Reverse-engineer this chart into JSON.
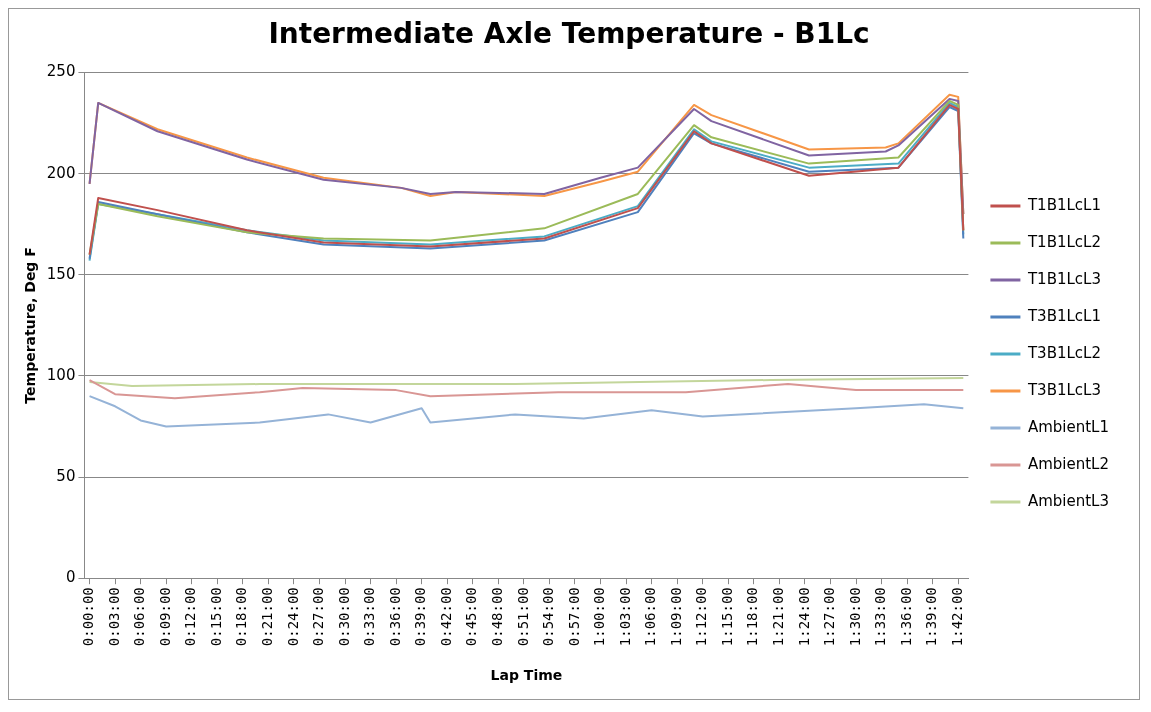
{
  "chart_data": {
    "type": "line",
    "title": "Intermediate Axle Temperature - B1Lc",
    "xlabel": "Lap Time",
    "ylabel": "Temperature, Deg F",
    "xlim": [
      -0.01,
      1.72
    ],
    "ylim": [
      0,
      250
    ],
    "yticks": [
      0,
      50,
      100,
      150,
      200,
      250
    ],
    "xticks": [
      {
        "value": 0,
        "label": "0:00:00"
      },
      {
        "value": 0.05,
        "label": "0:03:00"
      },
      {
        "value": 0.1,
        "label": "0:06:00"
      },
      {
        "value": 0.15,
        "label": "0:09:00"
      },
      {
        "value": 0.2,
        "label": "0:12:00"
      },
      {
        "value": 0.25,
        "label": "0:15:00"
      },
      {
        "value": 0.3,
        "label": "0:18:00"
      },
      {
        "value": 0.35,
        "label": "0:21:00"
      },
      {
        "value": 0.4,
        "label": "0:24:00"
      },
      {
        "value": 0.45,
        "label": "0:27:00"
      },
      {
        "value": 0.5,
        "label": "0:30:00"
      },
      {
        "value": 0.55,
        "label": "0:33:00"
      },
      {
        "value": 0.6,
        "label": "0:36:00"
      },
      {
        "value": 0.65,
        "label": "0:39:00"
      },
      {
        "value": 0.7,
        "label": "0:42:00"
      },
      {
        "value": 0.75,
        "label": "0:45:00"
      },
      {
        "value": 0.8,
        "label": "0:48:00"
      },
      {
        "value": 0.85,
        "label": "0:51:00"
      },
      {
        "value": 0.9,
        "label": "0:54:00"
      },
      {
        "value": 0.95,
        "label": "0:57:00"
      },
      {
        "value": 1.0,
        "label": "1:00:00"
      },
      {
        "value": 1.05,
        "label": "1:03:00"
      },
      {
        "value": 1.1,
        "label": "1:06:00"
      },
      {
        "value": 1.15,
        "label": "1:09:00"
      },
      {
        "value": 1.2,
        "label": "1:12:00"
      },
      {
        "value": 1.25,
        "label": "1:15:00"
      },
      {
        "value": 1.3,
        "label": "1:18:00"
      },
      {
        "value": 1.35,
        "label": "1:21:00"
      },
      {
        "value": 1.4,
        "label": "1:24:00"
      },
      {
        "value": 1.45,
        "label": "1:27:00"
      },
      {
        "value": 1.5,
        "label": "1:30:00"
      },
      {
        "value": 1.55,
        "label": "1:33:00"
      },
      {
        "value": 1.6,
        "label": "1:36:00"
      },
      {
        "value": 1.65,
        "label": "1:39:00"
      },
      {
        "value": 1.7,
        "label": "1:42:00"
      }
    ],
    "grid": "y",
    "legend": "right",
    "marker": "none",
    "line_style": "solid",
    "series": [
      {
        "name": "T1B1LcL1",
        "color": "#c0504d",
        "x": [
          0,
          0.017,
          0.133,
          0.308,
          0.458,
          0.667,
          0.89,
          1.073,
          1.183,
          1.217,
          1.408,
          1.583,
          1.683,
          1.7,
          1.71
        ],
        "values": [
          160,
          188,
          182,
          172,
          166,
          164,
          168,
          183,
          221,
          215,
          199,
          203,
          234,
          232,
          172
        ]
      },
      {
        "name": "T1B1LcL2",
        "color": "#9bbb59",
        "x": [
          0,
          0.017,
          0.133,
          0.308,
          0.458,
          0.667,
          0.89,
          1.073,
          1.183,
          1.217,
          1.408,
          1.583,
          1.683,
          1.7,
          1.71
        ],
        "values": [
          160,
          185,
          179,
          171,
          168,
          167,
          173,
          190,
          224,
          218,
          205,
          208,
          236,
          234,
          172
        ]
      },
      {
        "name": "T1B1LcL3",
        "color": "#8064a2",
        "x": [
          0,
          0.017,
          0.133,
          0.308,
          0.458,
          0.61,
          0.667,
          0.717,
          0.89,
          1.0,
          1.073,
          1.183,
          1.217,
          1.408,
          1.558,
          1.583,
          1.683,
          1.7,
          1.71
        ],
        "values": [
          195,
          235,
          221,
          207,
          197,
          193,
          190,
          191,
          190,
          198,
          203,
          232,
          226,
          209,
          211,
          214,
          237,
          236,
          180
        ]
      },
      {
        "name": "T3B1LcL1",
        "color": "#4f81bd",
        "x": [
          0,
          0.017,
          0.133,
          0.308,
          0.458,
          0.667,
          0.89,
          1.073,
          1.183,
          1.217,
          1.408,
          1.583,
          1.683,
          1.7,
          1.71
        ],
        "values": [
          158,
          186,
          180,
          171,
          165,
          163,
          167,
          181,
          220,
          215,
          201,
          203,
          233,
          231,
          168
        ]
      },
      {
        "name": "T3B1LcL2",
        "color": "#4bacc6",
        "x": [
          0,
          0.017,
          0.133,
          0.308,
          0.458,
          0.667,
          0.89,
          1.073,
          1.183,
          1.217,
          1.408,
          1.583,
          1.683,
          1.7,
          1.71
        ],
        "values": [
          157,
          185,
          180,
          172,
          167,
          165,
          169,
          184,
          222,
          216,
          203,
          205,
          235,
          233,
          170
        ]
      },
      {
        "name": "T3B1LcL3",
        "color": "#f79646",
        "x": [
          0,
          0.017,
          0.133,
          0.308,
          0.458,
          0.61,
          0.667,
          0.717,
          0.89,
          1.0,
          1.073,
          1.183,
          1.217,
          1.408,
          1.558,
          1.583,
          1.683,
          1.7,
          1.71
        ],
        "values": [
          195,
          235,
          222,
          208,
          198,
          193,
          189,
          191,
          189,
          196,
          201,
          234,
          229,
          212,
          213,
          215,
          239,
          238,
          180
        ]
      },
      {
        "name": "AmbientL1",
        "color": "#95b3d7",
        "x": [
          0,
          0.05,
          0.1,
          0.15,
          0.333,
          0.467,
          0.55,
          0.65,
          0.667,
          0.833,
          0.967,
          1.1,
          1.2,
          1.5,
          1.633,
          1.71
        ],
        "values": [
          90,
          85,
          78,
          75,
          77,
          81,
          77,
          84,
          77,
          81,
          79,
          83,
          80,
          84,
          86,
          84
        ]
      },
      {
        "name": "AmbientL2",
        "color": "#d99694",
        "x": [
          0,
          0.05,
          0.167,
          0.333,
          0.417,
          0.6,
          0.667,
          0.917,
          1.167,
          1.367,
          1.5,
          1.71
        ],
        "values": [
          98,
          91,
          89,
          92,
          94,
          93,
          90,
          92,
          92,
          96,
          93,
          93
        ]
      },
      {
        "name": "AmbientL3",
        "color": "#c3d69b",
        "x": [
          0,
          0.083,
          0.333,
          0.833,
          1.333,
          1.71
        ],
        "values": [
          97,
          95,
          96,
          96,
          98,
          99
        ]
      }
    ]
  }
}
